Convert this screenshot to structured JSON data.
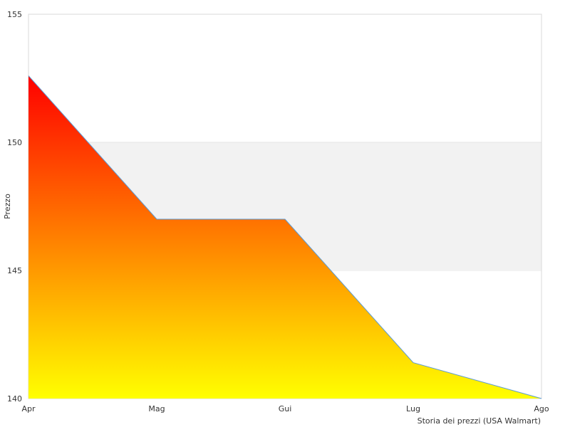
{
  "chart_data": {
    "type": "area",
    "categories": [
      "Apr",
      "Mag",
      "Gui",
      "Lug",
      "Ago"
    ],
    "series": [
      {
        "values": [
          152.6,
          147.0,
          147.0,
          141.4,
          140.0
        ]
      }
    ],
    "ylabel": "Prezzo",
    "xlabel": "Storia dei prezzi (USA Walmart)",
    "ylim": [
      140,
      155
    ],
    "yticks": [
      "140",
      "145",
      "150",
      "155"
    ],
    "grid": "alternating horizontal bands",
    "colors": {
      "fill_top": "#ff0000",
      "fill_mid": "#ff7f00",
      "fill_bottom": "#ffff00",
      "line": "#5b9bd5",
      "band": "#f2f2f2",
      "border": "#d9d9d9",
      "text": "#333333"
    }
  }
}
